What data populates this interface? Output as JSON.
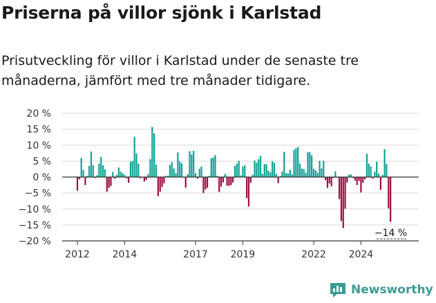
{
  "page": {
    "title": "Priserna på villor sjönk i Karlstad",
    "subtitle": "Prisutveckling för villor i Karlstad under de senaste tre månaderna, jämfört med tre månader tidigare."
  },
  "brand": {
    "name": "Newsworthy",
    "icon": "newsworthy-logo-icon",
    "color": "#3b9b94"
  },
  "chart_data": {
    "type": "bar",
    "ylim": [
      -20,
      20
    ],
    "yticks": [
      20,
      15,
      10,
      5,
      0,
      -5,
      -10,
      -15,
      -20
    ],
    "ytick_labels": [
      "20 %",
      "15 %",
      "10 %",
      "5 %",
      "0 %",
      "−5 %",
      "−10 %",
      "−15 %",
      "−20 %"
    ],
    "xticks": [
      {
        "label": "2012",
        "year": 2012
      },
      {
        "label": "2014",
        "year": 2014
      },
      {
        "label": "2017",
        "year": 2017
      },
      {
        "label": "2019",
        "year": 2019
      },
      {
        "label": "2022",
        "year": 2022
      },
      {
        "label": "2024",
        "year": 2024
      }
    ],
    "start": "2012-01",
    "grid": true,
    "colors": {
      "positive": "#10a195",
      "negative": "#9e0e43",
      "grid": "#d9d9d9",
      "axis": "#333333"
    },
    "values": [
      -4.3,
      -0.7,
      6,
      2.2,
      -2.5,
      0.4,
      3.5,
      8,
      3.7,
      -0.3,
      0.6,
      4.2,
      6.3,
      3.7,
      2.4,
      -4.6,
      -3.4,
      -2.8,
      1.6,
      -0.5,
      0.7,
      3,
      1.7,
      1.2,
      0.7,
      -0.4,
      -1.8,
      4.8,
      5,
      12.6,
      7.4,
      4.2,
      -0.4,
      -0.1,
      -1.4,
      -0.9,
      0.9,
      5.6,
      15.7,
      13.7,
      3.9,
      -6,
      -4.6,
      -3.1,
      -2,
      0.4,
      0.4,
      3.8,
      4.7,
      2.7,
      1.2,
      7.7,
      4.9,
      4.3,
      -0.2,
      -3.3,
      0.9,
      8.1,
      7.1,
      8.2,
      1.2,
      -0.5,
      2.6,
      3.3,
      -5,
      -3.9,
      -3.4,
      0.4,
      5.9,
      6.1,
      6.8,
      0.4,
      -4.7,
      -3,
      -1.7,
      1,
      -2.7,
      -2.8,
      -2.5,
      -1.7,
      3.5,
      4.2,
      5.1,
      0.5,
      3.3,
      3.7,
      -6.6,
      -9.2,
      -1.8,
      0.7,
      5.2,
      4.5,
      5.6,
      6.6,
      1,
      4.1,
      4,
      2,
      1.5,
      5,
      4.5,
      1,
      -1.9,
      0.3,
      1.7,
      7.9,
      1.2,
      1.1,
      2.3,
      0.9,
      8.5,
      9,
      9.4,
      4.2,
      2.6,
      2.5,
      1.3,
      7.8,
      7.8,
      6.8,
      2.6,
      2.1,
      1.3,
      5.1,
      2.7,
      5.1,
      -1,
      -3.4,
      -2,
      -2.9,
      -0.3,
      1.8,
      -0.2,
      -6.9,
      -13.8,
      -16,
      -9.9,
      -1.7,
      0.8,
      0.8,
      -0.3,
      -1.1,
      -2.5,
      -1.2,
      -4.8,
      -1.8,
      -0.7,
      7.3,
      4.2,
      3.3,
      -0.5,
      1.7,
      4.8,
      1.1,
      -4,
      0.7,
      8.8,
      4.1,
      -9.8,
      -14
    ]
  },
  "annotation": {
    "label": "−14 %",
    "value": -14
  }
}
